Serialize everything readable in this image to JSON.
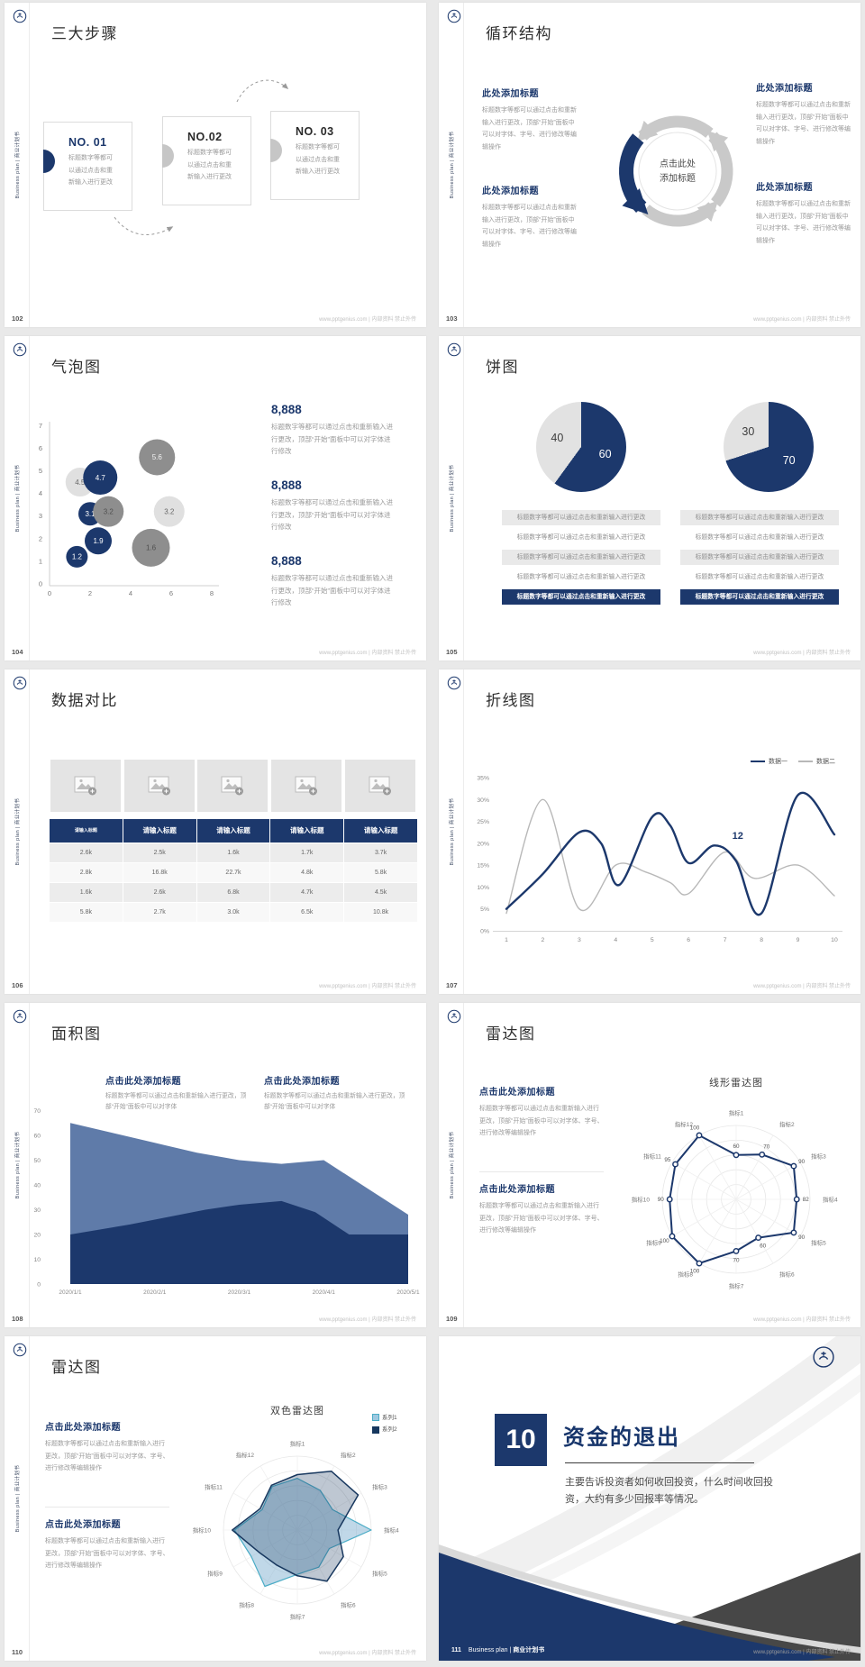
{
  "common": {
    "sidebar_text": "Business plan | 商业计划书",
    "watermark": "www.pptgenius.com | 内部资料 禁止外传",
    "colors": {
      "navy": "#1c386c",
      "mid_gray": "#8e8e8e",
      "light_gray": "#e0e0e0",
      "arrow_gray": "#c9c9c9",
      "area_light_blue": "#5f7ba9",
      "radar_teal": "#4bacc6"
    }
  },
  "slides": {
    "s102": {
      "page_num": "102",
      "title": "三大步骤",
      "steps": [
        {
          "no": "NO. 01",
          "body": "标题数字等都可以通过点击和重新输入进行更改"
        },
        {
          "no": "NO.02",
          "body": "标题数字等都可以通过点击和重新输入进行更改"
        },
        {
          "no": "NO. 03",
          "body": "标题数字等都可以通过点击和重新输入进行更改"
        }
      ]
    },
    "s103": {
      "page_num": "103",
      "title": "循环结构",
      "center_label": "点击此处添加标题",
      "blocks": [
        {
          "heading": "此处添加标题",
          "body": "标题数字等都可以通过点击和重新输入进行更改，顶部“开始”面板中可以对字体、字号、进行修改等编辑操作"
        },
        {
          "heading": "此处添加标题",
          "body": "标题数字等都可以通过点击和重新输入进行更改，顶部“开始”面板中可以对字体、字号、进行修改等编辑操作"
        },
        {
          "heading": "此处添加标题",
          "body": "标题数字等都可以通过点击和重新输入进行更改，顶部“开始”面板中可以对字体、字号、进行修改等编辑操作"
        },
        {
          "heading": "此处添加标题",
          "body": "标题数字等都可以通过点击和重新输入进行更改，顶部“开始”面板中可以对字体、字号、进行修改等编辑操作"
        }
      ]
    },
    "s104": {
      "page_num": "104",
      "title": "气泡图",
      "stats": [
        {
          "value": "8,888",
          "body": "标题数字等都可以通过点击和重新输入进行更改，顶部“开始”面板中可以对字体进行修改"
        },
        {
          "value": "8,888",
          "body": "标题数字等都可以通过点击和重新输入进行更改，顶部“开始”面板中可以对字体进行修改"
        },
        {
          "value": "8,888",
          "body": "标题数字等都可以通过点击和重新输入进行更改，顶部“开始”面板中可以对字体进行修改"
        }
      ]
    },
    "s105": {
      "page_num": "105",
      "title": "饼图",
      "bar_text": "标题数字等都可以通过点击和重新输入进行更改"
    },
    "s106": {
      "page_num": "106",
      "title": "数据对比"
    },
    "s107": {
      "page_num": "107",
      "title": "折线图"
    },
    "s108": {
      "page_num": "108",
      "title": "面积图",
      "blocks": [
        {
          "heading": "点击此处添加标题",
          "body": "标题数字等都可以通过点击和重新输入进行更改，顶部“开始”面板中可以对字体"
        },
        {
          "heading": "点击此处添加标题",
          "body": "标题数字等都可以通过点击和重新输入进行更改，顶部“开始”面板中可以对字体"
        }
      ]
    },
    "s109": {
      "page_num": "109",
      "title": "雷达图",
      "blocks": [
        {
          "heading": "点击此处添加标题",
          "body": "标题数字等都可以通过点击和重新输入进行更改，顶部“开始”面板中可以对字体、字号、进行修改等编辑操作"
        },
        {
          "heading": "点击此处添加标题",
          "body": "标题数字等都可以通过点击和重新输入进行更改，顶部“开始”面板中可以对字体、字号、进行修改等编辑操作"
        }
      ]
    },
    "s110": {
      "page_num": "110",
      "title": "雷达图",
      "blocks": [
        {
          "heading": "点击此处添加标题",
          "body": "标题数字等都可以通过点击和重新输入进行更改，顶部“开始”面板中可以对字体、字号、进行修改等编辑操作"
        },
        {
          "heading": "点击此处添加标题",
          "body": "标题数字等都可以通过点击和重新输入进行更改，顶部“开始”面板中可以对字体、字号、进行修改等编辑操作"
        }
      ]
    },
    "s111": {
      "page_num": "111",
      "number": "10",
      "title": "资金的退出",
      "body": "主要告诉投资者如何收回投资，什么时间收回投资，大约有多少回报率等情况。",
      "footer_pre": "Business plan | ",
      "footer_bold": "商业计划书"
    }
  },
  "chart_data": [
    {
      "id": "bubble-104",
      "type": "scatter",
      "title": "气泡图",
      "xlim": [
        0,
        8
      ],
      "ylim": [
        0,
        7
      ],
      "x_ticks": [
        0,
        2,
        4,
        6,
        8
      ],
      "y_ticks": [
        0,
        1,
        2,
        3,
        4,
        5,
        6,
        7
      ],
      "points": [
        {
          "x": 1.5,
          "y": 4.5,
          "r": 16,
          "color": "#e0e0e0",
          "label": "4.5",
          "label_color": "#666666"
        },
        {
          "x": 2.5,
          "y": 4.7,
          "r": 19,
          "color": "#1c386c",
          "label": "4.7",
          "label_color": "#ffffff"
        },
        {
          "x": 5.3,
          "y": 5.6,
          "r": 20,
          "color": "#8e8e8e",
          "label": "5.6",
          "label_color": "#f2f2f2"
        },
        {
          "x": 2.0,
          "y": 3.1,
          "r": 13,
          "color": "#1c386c",
          "label": "3.1",
          "label_color": "#ffffff"
        },
        {
          "x": 2.9,
          "y": 3.2,
          "r": 17,
          "color": "#8e8e8e",
          "label": "3.2",
          "label_color": "#4f4f4f"
        },
        {
          "x": 5.9,
          "y": 3.2,
          "r": 17,
          "color": "#e0e0e0",
          "label": "3.2",
          "label_color": "#666666"
        },
        {
          "x": 5.0,
          "y": 1.6,
          "r": 21,
          "color": "#8e8e8e",
          "label": "1.6",
          "label_color": "#4f4f4f"
        },
        {
          "x": 2.4,
          "y": 1.9,
          "r": 15,
          "color": "#1c386c",
          "label": "1.9",
          "label_color": "#ffffff"
        },
        {
          "x": 1.35,
          "y": 1.2,
          "r": 12,
          "color": "#1c386c",
          "label": "1.2",
          "label_color": "#ffffff"
        }
      ]
    },
    {
      "id": "pies-105",
      "type": "pie",
      "charts": [
        {
          "values": [
            60,
            40
          ],
          "labels": [
            "60",
            "40"
          ],
          "colors": [
            "#1c386c",
            "#e2e2e2"
          ],
          "label_colors": [
            "#ffffff",
            "#3d3d3d"
          ]
        },
        {
          "values": [
            70,
            30
          ],
          "labels": [
            "70",
            "30"
          ],
          "colors": [
            "#1c386c",
            "#e2e2e2"
          ],
          "label_colors": [
            "#ffffff",
            "#3d3d3d"
          ]
        }
      ]
    },
    {
      "id": "table-106",
      "type": "table",
      "headers": [
        "请输入标题",
        "请输入标题",
        "请输入标题",
        "请输入标题",
        "请输入标题"
      ],
      "rows": [
        [
          "2.6k",
          "2.5k",
          "1.6k",
          "1.7k",
          "3.7k"
        ],
        [
          "2.8k",
          "16.8k",
          "22.7k",
          "4.8k",
          "5.8k"
        ],
        [
          "1.6k",
          "2.6k",
          "6.8k",
          "4.7k",
          "4.5k"
        ],
        [
          "5.8k",
          "2.7k",
          "3.0k",
          "6.5k",
          "10.8k"
        ]
      ]
    },
    {
      "id": "line-107",
      "type": "line",
      "xlim": [
        1,
        10
      ],
      "ylim": [
        0,
        35
      ],
      "x_ticks": [
        1,
        2,
        3,
        4,
        5,
        6,
        7,
        8,
        9,
        10
      ],
      "y_ticks": [
        0,
        5,
        10,
        15,
        20,
        25,
        30,
        35
      ],
      "annotation": {
        "text": "12",
        "x": 7.35,
        "y": 21
      },
      "series": [
        {
          "name": "数据一",
          "color": "#1c386c",
          "width": 2.4,
          "points": [
            [
              1,
              5
            ],
            [
              2,
              13
            ],
            [
              3,
              22.5
            ],
            [
              3.6,
              20
            ],
            [
              4.1,
              10.5
            ],
            [
              5,
              26
            ],
            [
              5.5,
              24
            ],
            [
              6,
              15.5
            ],
            [
              6.7,
              19.5
            ],
            [
              7.3,
              16
            ],
            [
              8,
              4
            ],
            [
              9,
              31
            ],
            [
              10,
              22
            ]
          ]
        },
        {
          "name": "数据二",
          "color": "#b8b8b8",
          "width": 1.4,
          "points": [
            [
              1,
              4
            ],
            [
              2,
              30
            ],
            [
              3,
              5
            ],
            [
              4,
              15
            ],
            [
              4.8,
              13.5
            ],
            [
              5.5,
              11
            ],
            [
              6,
              8.5
            ],
            [
              7,
              18
            ],
            [
              7.8,
              12
            ],
            [
              9,
              15
            ],
            [
              10,
              8
            ]
          ]
        }
      ]
    },
    {
      "id": "area-108",
      "type": "area",
      "xlim": [
        0,
        4
      ],
      "ylim": [
        0,
        70
      ],
      "y_ticks": [
        0,
        10,
        20,
        30,
        40,
        50,
        60,
        70
      ],
      "x_labels": [
        "2020/1/1",
        "2020/2/1",
        "2020/3/1",
        "2020/4/1",
        "2020/5/1"
      ],
      "series": [
        {
          "color": "#5f7ba9",
          "points": [
            [
              0,
              65
            ],
            [
              0.5,
              61
            ],
            [
              1,
              57
            ],
            [
              1.5,
              53
            ],
            [
              2,
              50
            ],
            [
              2.5,
              48.5
            ],
            [
              3,
              50
            ],
            [
              3.5,
              39
            ],
            [
              4,
              28
            ]
          ]
        },
        {
          "color": "#1c386c",
          "points": [
            [
              0,
              20
            ],
            [
              0.7,
              24
            ],
            [
              1,
              26
            ],
            [
              1.6,
              30
            ],
            [
              2,
              32
            ],
            [
              2.5,
              33.5
            ],
            [
              2.9,
              29
            ],
            [
              3.3,
              20
            ],
            [
              4,
              20
            ]
          ]
        }
      ]
    },
    {
      "id": "radar-109",
      "type": "radar",
      "title": "线形雷达图",
      "max": 100,
      "categories": [
        "指标1",
        "指标2",
        "指标3",
        "指标4",
        "指标5",
        "指标6",
        "指标7",
        "指标8",
        "指标9",
        "指标10",
        "指标11",
        "指标12"
      ],
      "series": [
        {
          "color": "#1c386c",
          "width": 2,
          "markers": true,
          "show_values": true,
          "values": [
            60,
            70,
            90,
            82,
            90,
            60,
            70,
            100,
            100,
            90,
            95,
            100
          ]
        }
      ]
    },
    {
      "id": "radar-110",
      "type": "radar",
      "title": "双色雷达图",
      "max": 100,
      "categories": [
        "指标1",
        "指标2",
        "指标3",
        "指标4",
        "指标5",
        "指标6",
        "指标7",
        "指标8",
        "指标9",
        "指标10",
        "指标11",
        "指标12"
      ],
      "series": [
        {
          "name": "系列1",
          "color": "#4bacc6",
          "width": 1.2,
          "fill": "rgba(130,178,210,0.5)",
          "values": [
            70,
            62,
            55,
            100,
            50,
            58,
            60,
            88,
            72,
            85,
            55,
            68
          ]
        },
        {
          "name": "系列2",
          "color": "#17375e",
          "width": 1.5,
          "fill": "rgba(23,55,94,0.28)",
          "values": [
            75,
            92,
            95,
            55,
            72,
            80,
            62,
            55,
            60,
            88,
            58,
            70
          ]
        }
      ]
    }
  ]
}
